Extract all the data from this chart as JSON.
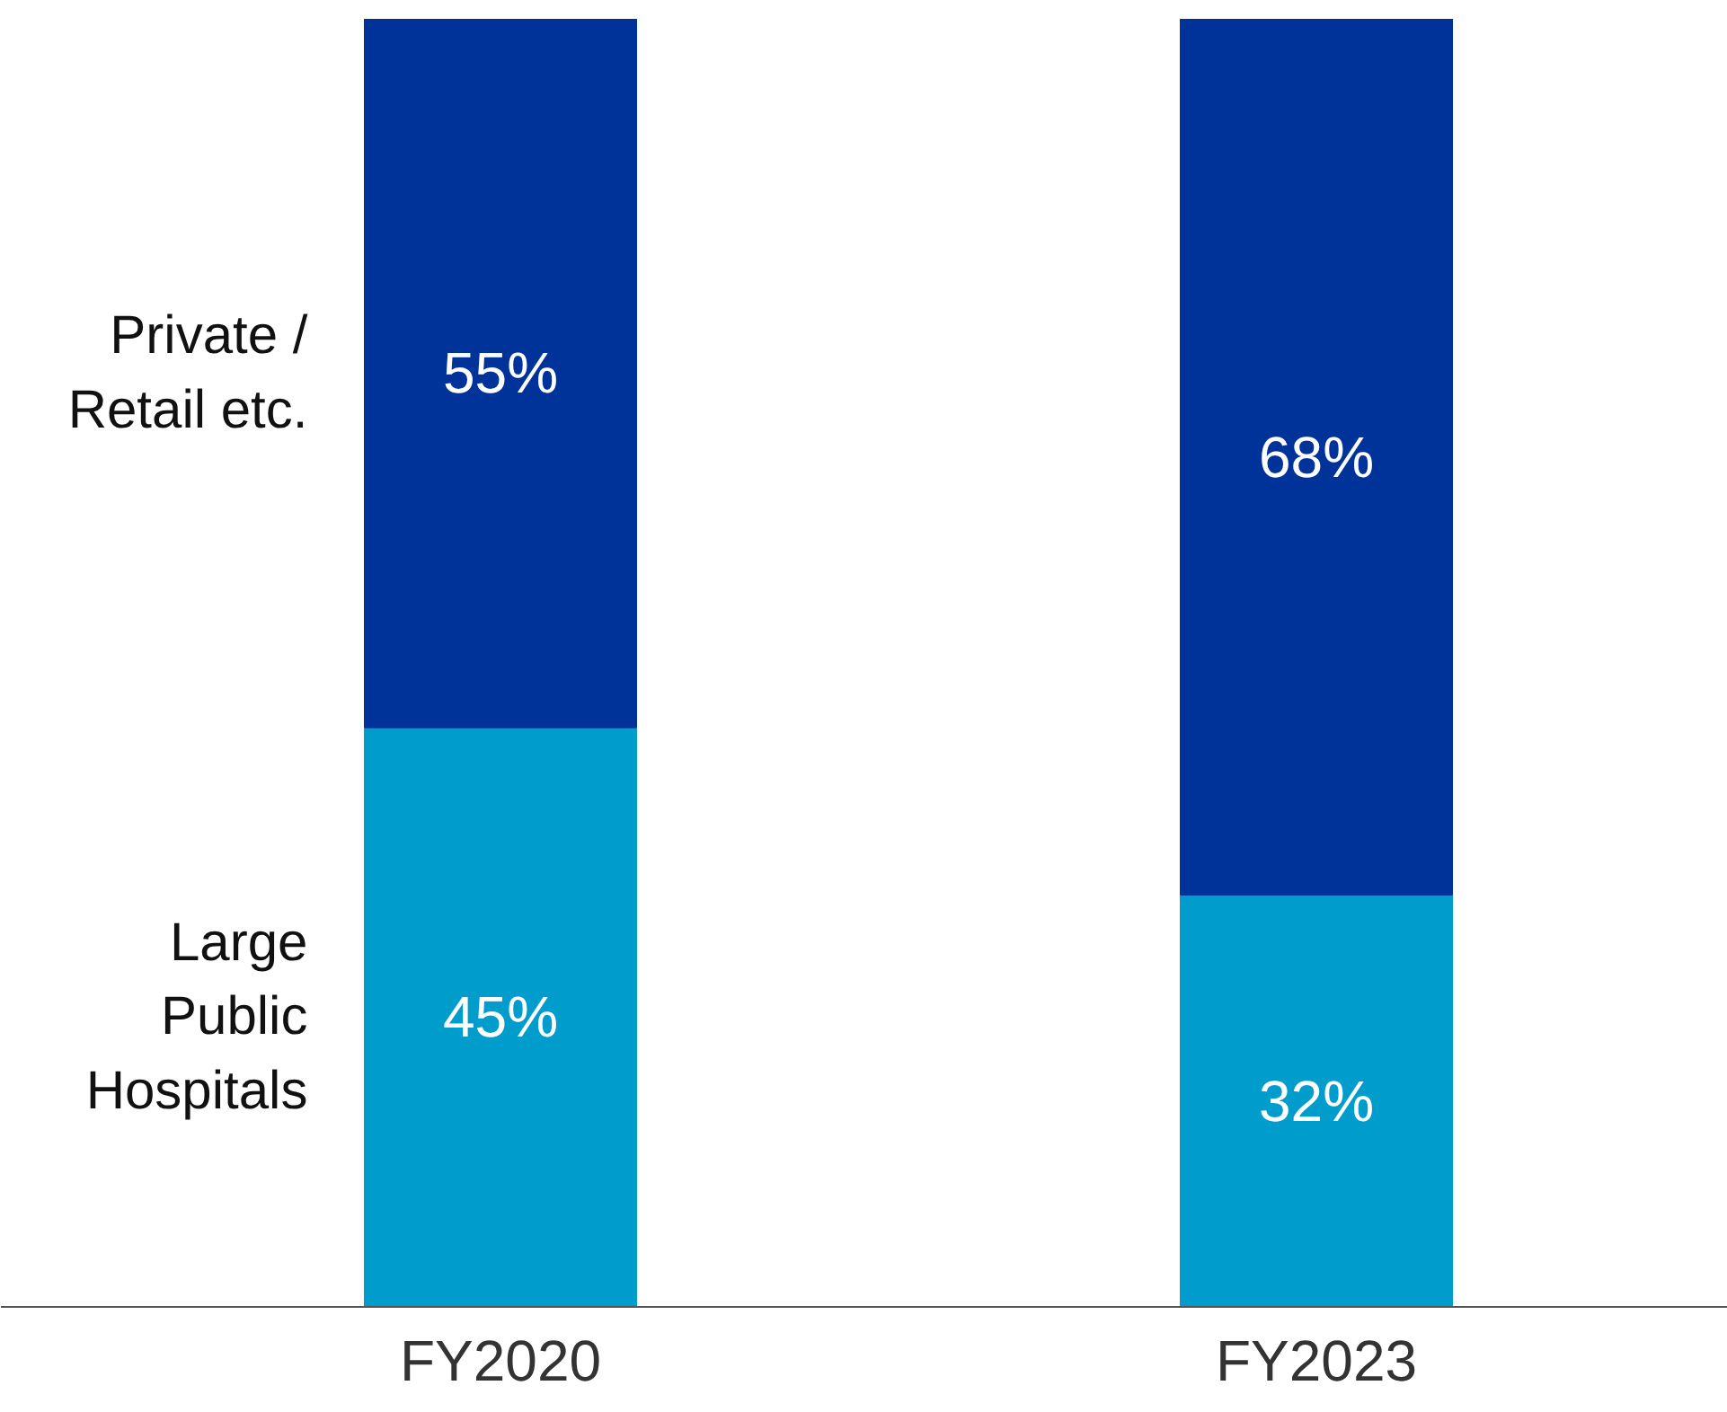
{
  "chart_data": {
    "type": "bar",
    "stacked": true,
    "categories": [
      "FY2020",
      "FY2023"
    ],
    "series": [
      {
        "name": "Large Public Hospitals",
        "color": "#009ccc",
        "values": [
          45,
          32
        ],
        "value_labels": [
          "45%",
          "32%"
        ]
      },
      {
        "name": "Private / Retail etc.",
        "color": "#003399",
        "values": [
          55,
          68
        ],
        "value_labels": [
          "55%",
          "68%"
        ]
      }
    ],
    "legend": false,
    "grid": false
  }
}
